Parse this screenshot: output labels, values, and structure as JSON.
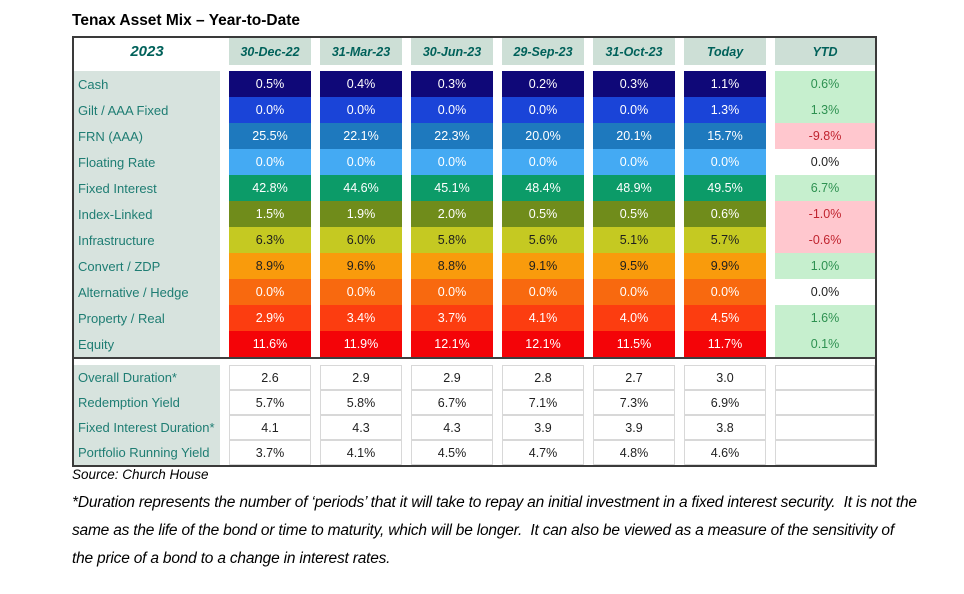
{
  "title": "Tenax Asset Mix – Year-to-Date",
  "table": {
    "year_label": "2023",
    "columns": [
      "30-Dec-22",
      "31-Mar-23",
      "30-Jun-23",
      "29-Sep-23",
      "31-Oct-23",
      "Today"
    ],
    "ytd_label": "YTD",
    "assets": [
      {
        "label": "Cash",
        "values": [
          "0.5%",
          "0.4%",
          "0.3%",
          "0.2%",
          "0.3%",
          "1.1%"
        ],
        "ytd": "0.6%",
        "ytd_style": "good",
        "bg": "#0F0878",
        "fg": "#FFFFFF"
      },
      {
        "label": "Gilt / AAA Fixed",
        "values": [
          "0.0%",
          "0.0%",
          "0.0%",
          "0.0%",
          "0.0%",
          "1.3%"
        ],
        "ytd": "1.3%",
        "ytd_style": "good",
        "bg": "#1A44D8",
        "fg": "#FFFFFF"
      },
      {
        "label": "FRN (AAA)",
        "values": [
          "25.5%",
          "22.1%",
          "22.3%",
          "20.0%",
          "20.1%",
          "15.7%"
        ],
        "ytd": "-9.8%",
        "ytd_style": "bad",
        "bg": "#1E79BE",
        "fg": "#FFFFFF"
      },
      {
        "label": "Floating Rate",
        "values": [
          "0.0%",
          "0.0%",
          "0.0%",
          "0.0%",
          "0.0%",
          "0.0%"
        ],
        "ytd": "0.0%",
        "ytd_style": "neutral",
        "bg": "#44AAF3",
        "fg": "#FFFFFF"
      },
      {
        "label": "Fixed Interest",
        "values": [
          "42.8%",
          "44.6%",
          "45.1%",
          "48.4%",
          "48.9%",
          "49.5%"
        ],
        "ytd": "6.7%",
        "ytd_style": "good",
        "bg": "#0C9B68",
        "fg": "#FFFFFF"
      },
      {
        "label": "Index-Linked",
        "values": [
          "1.5%",
          "1.9%",
          "2.0%",
          "0.5%",
          "0.5%",
          "0.6%"
        ],
        "ytd": "-1.0%",
        "ytd_style": "bad",
        "bg": "#708C1B",
        "fg": "#FFFFFF"
      },
      {
        "label": "Infrastructure",
        "values": [
          "6.3%",
          "6.0%",
          "5.8%",
          "5.6%",
          "5.1%",
          "5.7%"
        ],
        "ytd": "-0.6%",
        "ytd_style": "bad",
        "bg": "#C5C922",
        "fg": "#1F1F1F"
      },
      {
        "label": "Convert / ZDP",
        "values": [
          "8.9%",
          "9.6%",
          "8.8%",
          "9.1%",
          "9.5%",
          "9.9%"
        ],
        "ytd": "1.0%",
        "ytd_style": "good",
        "bg": "#F99B0C",
        "fg": "#1F1F1F"
      },
      {
        "label": "Alternative / Hedge",
        "values": [
          "0.0%",
          "0.0%",
          "0.0%",
          "0.0%",
          "0.0%",
          "0.0%"
        ],
        "ytd": "0.0%",
        "ytd_style": "neutral",
        "bg": "#F8690F",
        "fg": "#FFFFFF"
      },
      {
        "label": "Property / Real",
        "values": [
          "2.9%",
          "3.4%",
          "3.7%",
          "4.1%",
          "4.0%",
          "4.5%"
        ],
        "ytd": "1.6%",
        "ytd_style": "good",
        "bg": "#FC3D10",
        "fg": "#FFFFFF"
      },
      {
        "label": "Equity",
        "values": [
          "11.6%",
          "11.9%",
          "12.1%",
          "12.1%",
          "11.5%",
          "11.7%"
        ],
        "ytd": "0.1%",
        "ytd_style": "good",
        "bg": "#F40408",
        "fg": "#FFFFFF"
      }
    ],
    "stats": [
      {
        "label": "Overall Duration*",
        "values": [
          "2.6",
          "2.9",
          "2.9",
          "2.8",
          "2.7",
          "3.0"
        ],
        "ytd": ""
      },
      {
        "label": "Redemption Yield",
        "values": [
          "5.7%",
          "5.8%",
          "6.7%",
          "7.1%",
          "7.3%",
          "6.9%"
        ],
        "ytd": ""
      },
      {
        "label": "Fixed Interest Duration*",
        "values": [
          "4.1",
          "4.3",
          "4.3",
          "3.9",
          "3.9",
          "3.8"
        ],
        "ytd": ""
      },
      {
        "label": "Portfolio Running Yield",
        "values": [
          "3.7%",
          "4.1%",
          "4.5%",
          "4.7%",
          "4.8%",
          "4.6%"
        ],
        "ytd": ""
      }
    ]
  },
  "footer": {
    "source": "Source: Church House",
    "footnote": "*Duration represents the number of ‘periods’ that it will take to repay an initial investment in a fixed interest security.  It is not the same as the life of the bond or time to maturity, which will be longer.  It can also be viewed as a measure of the sensitivity of the price of a bond to a change in interest rates."
  },
  "theme": {
    "header-fg": "#00615A",
    "head-bg": "#CDDFD6",
    "label-bg": "#D7E3DE",
    "label-fg": "#1E7D73",
    "good-bg": "#C6EFCE",
    "good-fg": "#2E9151",
    "bad-bg": "#FFC7CE",
    "bad-fg": "#C0242F",
    "grid": "#D8D8D8"
  }
}
